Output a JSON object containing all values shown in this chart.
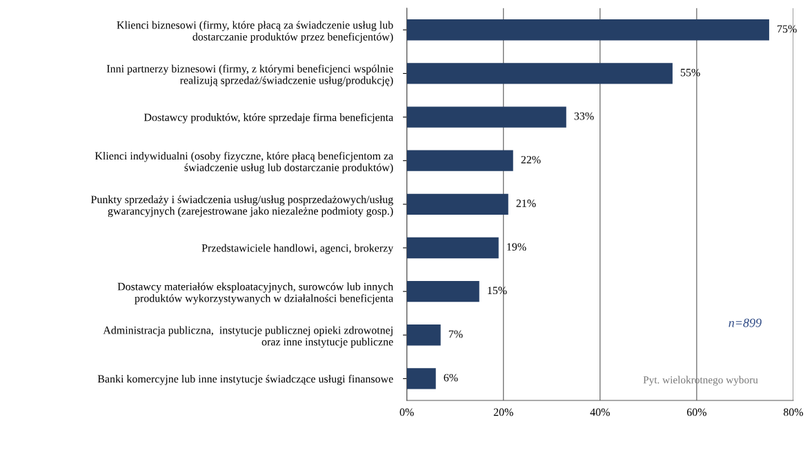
{
  "chart_data": {
    "type": "bar",
    "orientation": "horizontal",
    "categories": [
      "Klienci biznesowi (firmy, które płacą za świadczenie usług lub\ndostarczanie produktów przez beneficjentów)",
      "Inni partnerzy biznesowi (firmy, z którymi beneficjenci wspólnie\nrealizują sprzedaż/świadczenie usług/produkcję)",
      "Dostawcy produktów, które sprzedaje firma beneficjenta",
      "Klienci indywidualni (osoby fizyczne, które płacą beneficjentom za\nświadczenie usług lub dostarczanie produktów)",
      "Punkty sprzedaży i świadczenia usług/usług posprzedażowych/usług\ngwarancyjnych (zarejestrowane jako niezależne podmioty gosp.)",
      "Przedstawiciele handlowi, agenci, brokerzy",
      "Dostawcy materiałów eksploatacyjnych, surowców lub innych\nproduktów wykorzystywanych w działalności beneficjenta",
      "Administracja publiczna,  instytucje publicznej opieki zdrowotnej\noraz inne instytucje publiczne",
      "Banki komercyjne lub inne instytucje świadczące usługi finansowe"
    ],
    "values": [
      75,
      55,
      33,
      22,
      21,
      19,
      15,
      7,
      6
    ],
    "value_labels": [
      "75%",
      "55%",
      "33%",
      "22%",
      "21%",
      "19%",
      "15%",
      "7%",
      "6%"
    ],
    "color": "#253f66",
    "xlim": [
      0,
      80
    ],
    "xticks": [
      {
        "value": 0,
        "label": "0%"
      },
      {
        "value": 20,
        "label": "20%"
      },
      {
        "value": 40,
        "label": "40%"
      },
      {
        "value": 60,
        "label": "60%"
      },
      {
        "value": 80,
        "label": "80%"
      }
    ],
    "grid": "x",
    "annotations": [
      "n=899",
      "Pyt. wielokrotnego wyboru"
    ]
  }
}
